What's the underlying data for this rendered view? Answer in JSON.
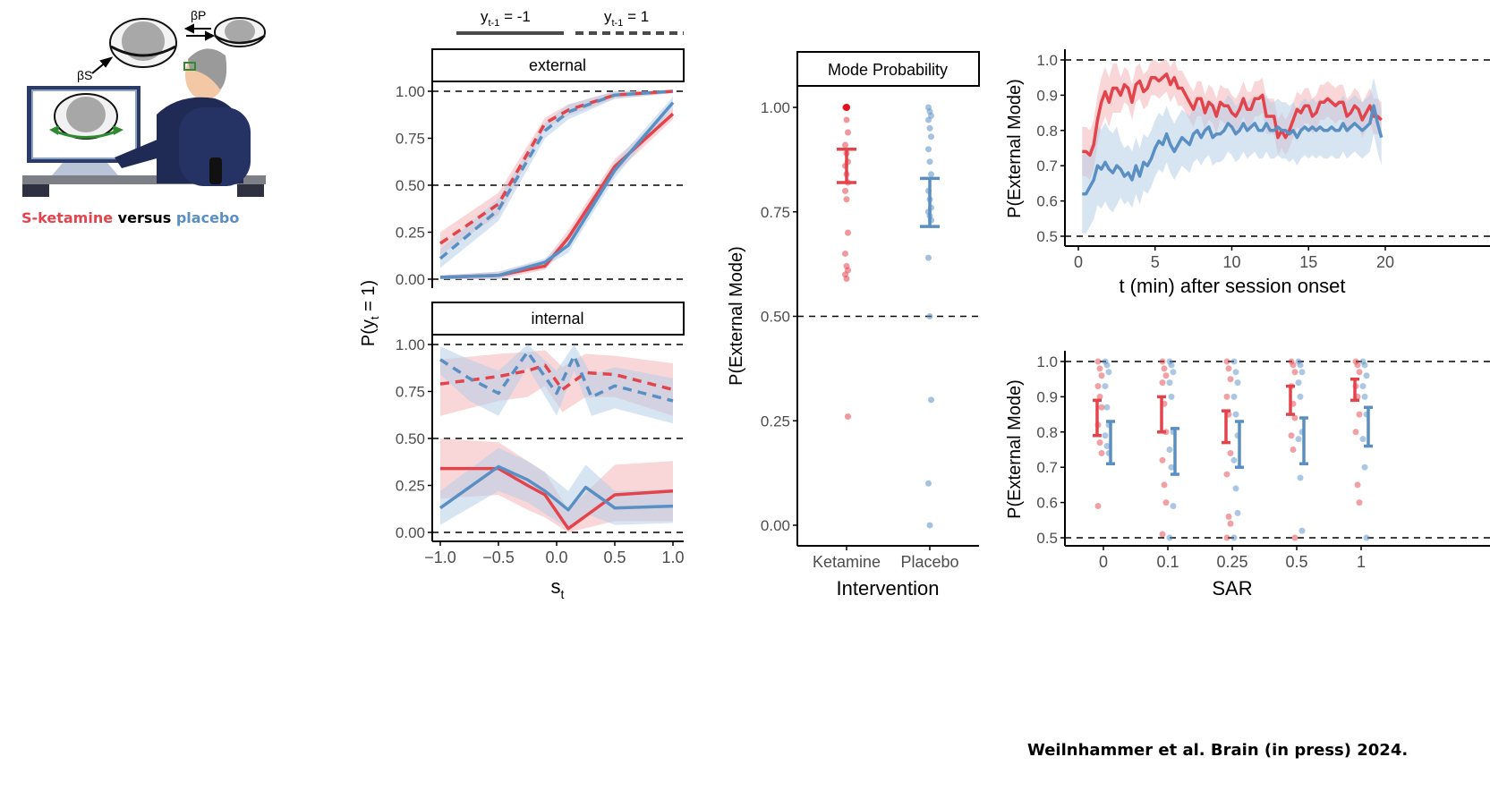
{
  "colors": {
    "ketamine": "#e3434b",
    "placebo": "#5a8fc4",
    "ketamine_band": "#f4b6ba",
    "placebo_band": "#b6cde5"
  },
  "illustration": {
    "beta_s": "βS",
    "beta_p": "βP",
    "caption_ketamine": "S-ketamine",
    "caption_versus": "versus",
    "caption_placebo": "placebo",
    "icons": [
      "sphere-stimulus-icon",
      "observer-person-icon",
      "monitor-icon",
      "desk-icon"
    ]
  },
  "legend": {
    "solid": "yt-1 = -1",
    "dashed": "yt-1 = 1"
  },
  "credit": "Weilnhammer et al. Brain (in press) 2024.",
  "chart_data": [
    {
      "type": "line",
      "panel": "external",
      "strip_label": "external",
      "ylabel": "P(yt = 1)",
      "xlabel": "st",
      "xlim": [
        -1,
        1
      ],
      "ylim": [
        0,
        1
      ],
      "xticks": [
        "−1.0",
        "−0.5",
        "0.0",
        "0.5",
        "1.0"
      ],
      "yticks": [
        "0.00",
        "0.25",
        "0.50",
        "0.75",
        "1.00"
      ],
      "hlines": [
        0,
        0.5,
        1
      ],
      "series": [
        {
          "group": "ketamine",
          "prev": -1,
          "x": [
            -1,
            -0.5,
            -0.1,
            0.1,
            0.5,
            1
          ],
          "y": [
            0.01,
            0.02,
            0.07,
            0.22,
            0.6,
            0.88
          ],
          "lo": [
            0.0,
            0.0,
            0.05,
            0.18,
            0.56,
            0.85
          ],
          "hi": [
            0.02,
            0.04,
            0.1,
            0.26,
            0.64,
            0.91
          ]
        },
        {
          "group": "placebo",
          "prev": -1,
          "x": [
            -1,
            -0.5,
            -0.1,
            0.1,
            0.5,
            1
          ],
          "y": [
            0.01,
            0.02,
            0.09,
            0.18,
            0.58,
            0.94
          ],
          "lo": [
            0.0,
            0.0,
            0.07,
            0.14,
            0.54,
            0.91
          ],
          "hi": [
            0.02,
            0.04,
            0.11,
            0.22,
            0.62,
            0.97
          ]
        },
        {
          "group": "ketamine",
          "prev": 1,
          "x": [
            -1,
            -0.5,
            -0.1,
            0.1,
            0.5,
            1
          ],
          "y": [
            0.19,
            0.4,
            0.83,
            0.9,
            0.98,
            1.0
          ],
          "lo": [
            0.13,
            0.34,
            0.8,
            0.87,
            0.96,
            0.99
          ],
          "hi": [
            0.25,
            0.46,
            0.86,
            0.93,
            1.0,
            1.0
          ]
        },
        {
          "group": "placebo",
          "prev": 1,
          "x": [
            -1,
            -0.5,
            -0.1,
            0.1,
            0.5,
            1
          ],
          "y": [
            0.11,
            0.37,
            0.79,
            0.89,
            0.98,
            1.0
          ],
          "lo": [
            0.06,
            0.31,
            0.75,
            0.85,
            0.96,
            0.99
          ],
          "hi": [
            0.16,
            0.43,
            0.83,
            0.93,
            1.0,
            1.0
          ]
        }
      ]
    },
    {
      "type": "line",
      "panel": "internal",
      "strip_label": "internal",
      "xlim": [
        -1,
        1
      ],
      "ylim": [
        0,
        1
      ],
      "xticks": [
        "−1.0",
        "−0.5",
        "0.0",
        "0.5",
        "1.0"
      ],
      "yticks": [
        "0.00",
        "0.25",
        "0.50",
        "0.75",
        "1.00"
      ],
      "hlines": [
        0,
        0.5,
        1
      ],
      "series": [
        {
          "group": "ketamine",
          "prev": -1,
          "x": [
            -1,
            -0.5,
            -0.25,
            -0.1,
            0.1,
            0.5,
            1
          ],
          "y": [
            0.34,
            0.34,
            0.25,
            0.2,
            0.02,
            0.2,
            0.22
          ],
          "lo": [
            0.18,
            0.2,
            0.12,
            0.08,
            0.0,
            0.06,
            0.06
          ],
          "hi": [
            0.5,
            0.48,
            0.38,
            0.32,
            0.12,
            0.36,
            0.38
          ]
        },
        {
          "group": "placebo",
          "prev": -1,
          "x": [
            -1,
            -0.5,
            -0.25,
            -0.1,
            0.1,
            0.25,
            0.5,
            1
          ],
          "y": [
            0.13,
            0.35,
            0.28,
            0.22,
            0.12,
            0.24,
            0.13,
            0.14
          ],
          "lo": [
            0.04,
            0.22,
            0.16,
            0.1,
            0.02,
            0.1,
            0.04,
            0.05
          ],
          "hi": [
            0.22,
            0.45,
            0.38,
            0.32,
            0.22,
            0.36,
            0.22,
            0.23
          ]
        },
        {
          "group": "ketamine",
          "prev": 1,
          "x": [
            -1,
            -0.5,
            -0.25,
            -0.1,
            0.05,
            0.25,
            0.5,
            1
          ],
          "y": [
            0.79,
            0.83,
            0.86,
            0.89,
            0.76,
            0.85,
            0.84,
            0.76
          ],
          "lo": [
            0.62,
            0.7,
            0.72,
            0.78,
            0.64,
            0.72,
            0.72,
            0.62
          ],
          "hi": [
            0.92,
            0.95,
            0.96,
            0.97,
            0.88,
            0.95,
            0.94,
            0.9
          ]
        },
        {
          "group": "placebo",
          "prev": 1,
          "x": [
            -1,
            -0.75,
            -0.5,
            -0.25,
            0.0,
            0.15,
            0.3,
            0.5,
            1
          ],
          "y": [
            0.92,
            0.82,
            0.74,
            0.96,
            0.74,
            0.94,
            0.72,
            0.78,
            0.7
          ],
          "lo": [
            0.84,
            0.7,
            0.62,
            0.88,
            0.62,
            0.86,
            0.62,
            0.66,
            0.58
          ],
          "hi": [
            0.99,
            0.92,
            0.86,
            1.0,
            0.86,
            1.0,
            0.84,
            0.88,
            0.82
          ]
        }
      ]
    },
    {
      "type": "scatter",
      "panel": "mode-probability",
      "strip_label": "Mode Probability",
      "xlabel": "Intervention",
      "ylabel": "P(External Mode)",
      "categories": [
        "Ketamine",
        "Placebo"
      ],
      "ylim": [
        0,
        1
      ],
      "yticks": [
        "0.00",
        "0.25",
        "0.50",
        "0.75",
        "1.00"
      ],
      "hlines": [
        0.5
      ],
      "means": [
        {
          "group": "ketamine",
          "lo": 0.82,
          "hi": 0.9
        },
        {
          "group": "placebo",
          "lo": 0.715,
          "hi": 0.83
        }
      ],
      "points": {
        "ketamine": [
          1.0,
          0.97,
          0.94,
          0.91,
          0.89,
          0.87,
          0.86,
          0.84,
          0.82,
          0.8,
          0.78,
          0.7,
          0.65,
          0.62,
          0.61,
          0.6,
          0.59,
          0.26
        ],
        "placebo": [
          1.0,
          0.99,
          0.98,
          0.97,
          0.95,
          0.93,
          0.9,
          0.87,
          0.84,
          0.8,
          0.78,
          0.76,
          0.75,
          0.74,
          0.73,
          0.64,
          0.5,
          0.3,
          0.1,
          0.0
        ]
      }
    },
    {
      "type": "line",
      "panel": "time-course",
      "xlabel": "t (min) after session onset",
      "ylabel": "P(External Mode)",
      "xlim": [
        -0.8,
        20.5
      ],
      "ylim": [
        0.47,
        1.02
      ],
      "xticks": [
        "0",
        "5",
        "10",
        "15",
        "20"
      ],
      "yticks": [
        "0.5",
        "0.6",
        "0.7",
        "0.8",
        "0.9",
        "1.0"
      ],
      "hlines": [
        0.5,
        1.0
      ],
      "band_halfwidth": {
        "ketamine": 0.05,
        "placebo": 0.08
      },
      "series": [
        {
          "group": "ketamine",
          "x": [
            0.25,
            0.5,
            0.75,
            1,
            1.25,
            1.5,
            1.75,
            2,
            2.25,
            2.5,
            2.75,
            3,
            3.25,
            3.5,
            3.75,
            4,
            4.25,
            4.5,
            4.75,
            5,
            5.25,
            5.5,
            5.75,
            6,
            6.25,
            6.5,
            6.75,
            7,
            7.25,
            7.5,
            7.75,
            8,
            8.25,
            8.5,
            8.75,
            9,
            9.25,
            9.5,
            9.75,
            10,
            10.25,
            10.5,
            10.75,
            11,
            11.25,
            11.5,
            11.75,
            12,
            12.25,
            12.5,
            12.75,
            13,
            13.25,
            13.5,
            13.75,
            14,
            14.25,
            14.5,
            14.75,
            15,
            15.25,
            15.5,
            15.75,
            16,
            16.25,
            16.5,
            16.75,
            17,
            17.25,
            17.5,
            17.75,
            18,
            18.25,
            18.5,
            18.75,
            19,
            19.25,
            19.5,
            19.75
          ],
          "y": [
            0.74,
            0.74,
            0.73,
            0.76,
            0.83,
            0.88,
            0.91,
            0.88,
            0.92,
            0.92,
            0.9,
            0.93,
            0.92,
            0.88,
            0.93,
            0.94,
            0.91,
            0.92,
            0.95,
            0.95,
            0.94,
            0.95,
            0.96,
            0.93,
            0.95,
            0.92,
            0.92,
            0.9,
            0.88,
            0.86,
            0.89,
            0.89,
            0.85,
            0.88,
            0.87,
            0.84,
            0.88,
            0.87,
            0.87,
            0.85,
            0.84,
            0.86,
            0.89,
            0.86,
            0.86,
            0.89,
            0.89,
            0.9,
            0.84,
            0.84,
            0.84,
            0.78,
            0.8,
            0.78,
            0.8,
            0.83,
            0.86,
            0.85,
            0.87,
            0.87,
            0.84,
            0.85,
            0.88,
            0.88,
            0.89,
            0.88,
            0.87,
            0.88,
            0.88,
            0.84,
            0.85,
            0.87,
            0.86,
            0.83,
            0.85,
            0.87,
            0.84,
            0.84,
            0.83
          ]
        },
        {
          "group": "placebo",
          "x": [
            0.25,
            0.5,
            0.75,
            1,
            1.25,
            1.5,
            1.75,
            2,
            2.25,
            2.5,
            2.75,
            3,
            3.25,
            3.5,
            3.75,
            4,
            4.25,
            4.5,
            4.75,
            5,
            5.25,
            5.5,
            5.75,
            6,
            6.25,
            6.5,
            6.75,
            7,
            7.25,
            7.5,
            7.75,
            8,
            8.25,
            8.5,
            8.75,
            9,
            9.25,
            9.5,
            9.75,
            10,
            10.25,
            10.5,
            10.75,
            11,
            11.25,
            11.5,
            11.75,
            12,
            12.25,
            12.5,
            12.75,
            13,
            13.25,
            13.5,
            13.75,
            14,
            14.25,
            14.5,
            14.75,
            15,
            15.25,
            15.5,
            15.75,
            16,
            16.25,
            16.5,
            16.75,
            17,
            17.25,
            17.5,
            17.75,
            18,
            18.25,
            18.5,
            18.75,
            19,
            19.25,
            19.5,
            19.75
          ],
          "y": [
            0.62,
            0.62,
            0.64,
            0.66,
            0.7,
            0.69,
            0.71,
            0.69,
            0.68,
            0.7,
            0.69,
            0.67,
            0.68,
            0.66,
            0.7,
            0.67,
            0.71,
            0.7,
            0.72,
            0.75,
            0.77,
            0.76,
            0.79,
            0.76,
            0.74,
            0.76,
            0.78,
            0.77,
            0.76,
            0.79,
            0.8,
            0.78,
            0.8,
            0.81,
            0.78,
            0.79,
            0.79,
            0.8,
            0.82,
            0.81,
            0.79,
            0.8,
            0.82,
            0.8,
            0.81,
            0.82,
            0.8,
            0.8,
            0.82,
            0.8,
            0.8,
            0.81,
            0.8,
            0.8,
            0.79,
            0.8,
            0.78,
            0.8,
            0.81,
            0.8,
            0.81,
            0.8,
            0.81,
            0.8,
            0.8,
            0.81,
            0.8,
            0.8,
            0.82,
            0.8,
            0.81,
            0.82,
            0.81,
            0.8,
            0.81,
            0.82,
            0.87,
            0.82,
            0.78
          ]
        }
      ]
    },
    {
      "type": "scatter",
      "panel": "sar",
      "xlabel": "SAR",
      "ylabel": "P(External Mode)",
      "categories": [
        "0",
        "0.1",
        "0.25",
        "0.5",
        "1"
      ],
      "ylim": [
        0.47,
        1.02
      ],
      "yticks": [
        "0.5",
        "0.6",
        "0.7",
        "0.8",
        "0.9",
        "1.0"
      ],
      "hlines": [
        0.5,
        1.0
      ],
      "means": {
        "ketamine": [
          {
            "lo": 0.79,
            "hi": 0.89
          },
          {
            "lo": 0.8,
            "hi": 0.9
          },
          {
            "lo": 0.77,
            "hi": 0.86
          },
          {
            "lo": 0.85,
            "hi": 0.93
          },
          {
            "lo": 0.89,
            "hi": 0.95
          }
        ],
        "placebo": [
          {
            "lo": 0.71,
            "hi": 0.83
          },
          {
            "lo": 0.68,
            "hi": 0.81
          },
          {
            "lo": 0.7,
            "hi": 0.83
          },
          {
            "lo": 0.71,
            "hi": 0.84
          },
          {
            "lo": 0.76,
            "hi": 0.87
          }
        ]
      },
      "points": {
        "ketamine": [
          [
            1.0,
            0.98,
            0.96,
            0.93,
            0.9,
            0.87,
            0.82,
            0.77,
            0.74,
            0.59
          ],
          [
            1.0,
            0.98,
            0.96,
            0.94,
            0.88,
            0.8,
            0.72,
            0.65,
            0.6,
            0.51
          ],
          [
            1.0,
            0.98,
            0.95,
            0.9,
            0.85,
            0.74,
            0.68,
            0.56,
            0.54,
            0.5
          ],
          [
            1.0,
            0.99,
            0.97,
            0.93,
            0.88,
            0.84,
            0.79,
            0.75,
            0.5
          ],
          [
            1.0,
            0.99,
            0.97,
            0.93,
            0.9,
            0.85,
            0.8,
            0.65,
            0.6
          ]
        ],
        "placebo": [
          [
            1.0,
            0.99,
            0.97,
            0.93,
            0.87,
            0.82,
            0.79,
            0.76,
            0.74
          ],
          [
            1.0,
            0.99,
            0.97,
            0.94,
            0.9,
            0.8,
            0.75,
            0.7,
            0.59,
            0.5
          ],
          [
            1.0,
            0.97,
            0.94,
            0.9,
            0.85,
            0.79,
            0.72,
            0.64,
            0.57,
            0.5
          ],
          [
            1.0,
            0.99,
            0.97,
            0.94,
            0.9,
            0.8,
            0.78,
            0.67,
            0.52
          ],
          [
            1.0,
            0.99,
            0.96,
            0.93,
            0.9,
            0.85,
            0.78,
            0.7,
            0.5
          ]
        ]
      }
    }
  ]
}
